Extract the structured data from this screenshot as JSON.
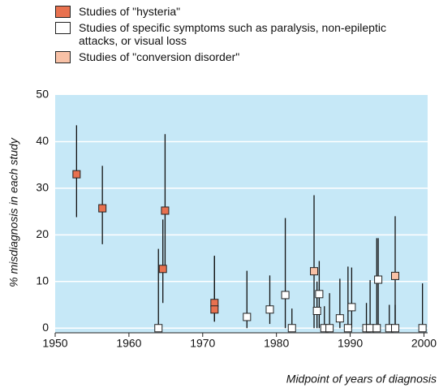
{
  "chart_data": {
    "type": "scatter",
    "ylabel": "% misdiagnosis in each study",
    "xlabel": "Midpoint of years of diagnosis",
    "xlim": [
      1950,
      2000.5
    ],
    "xticks": [
      1950,
      1960,
      1970,
      1980,
      1990,
      2000
    ],
    "ylim": [
      -1,
      50
    ],
    "yticks": [
      0,
      10,
      20,
      30,
      40,
      50
    ],
    "grid": true,
    "background": "#c6e8f7",
    "series": [
      {
        "name": "Studies of \"hysteria\"",
        "color": "#e8714f",
        "x": [
          1952.9,
          1956.4,
          1964.6,
          1964.9,
          1971.6,
          1971.6
        ],
        "values": [
          33,
          25.7,
          12.7,
          25.2,
          5.4,
          4.0
        ],
        "low": [
          23.8,
          18,
          5.4,
          13,
          1.4,
          1.4
        ],
        "high": [
          43.5,
          34.8,
          23.3,
          41.6,
          15.5,
          15.5
        ]
      },
      {
        "name": "Studies of specific symptoms such as paralysis, non-epileptic attacks, or visual loss",
        "color": "#ffffff",
        "x": [
          1964,
          1976,
          1979.1,
          1981.2,
          1982.1,
          1985.5,
          1985.8,
          1986.5,
          1987.2,
          1988.6,
          1989.7,
          1990.2,
          1992.2,
          1992.7,
          1993.6,
          1993.8,
          1995.3,
          1996.1,
          1999.8
        ],
        "values": [
          0,
          2.4,
          4.0,
          7.1,
          0,
          3.7,
          7.3,
          0,
          0,
          2.1,
          0,
          4.5,
          0,
          0,
          0,
          10.4,
          0,
          0,
          0
        ],
        "low": [
          0,
          0,
          0.9,
          0,
          0,
          0,
          0,
          0,
          0,
          0,
          0,
          0,
          0,
          0,
          0,
          0,
          0,
          0,
          0
        ],
        "high": [
          17,
          12.3,
          11.3,
          23.6,
          4.2,
          10,
          14.4,
          4.7,
          7.5,
          10.6,
          13.2,
          13,
          5.4,
          10.3,
          19.3,
          19.3,
          5,
          5,
          9.6
        ]
      },
      {
        "name": "Studies of \"conversion disorder\"",
        "color": "#f8c1a6",
        "x": [
          1985.1,
          1996.1
        ],
        "values": [
          12.2,
          11.2
        ],
        "low": [
          0,
          0
        ],
        "high": [
          28.5,
          24
        ]
      }
    ]
  }
}
